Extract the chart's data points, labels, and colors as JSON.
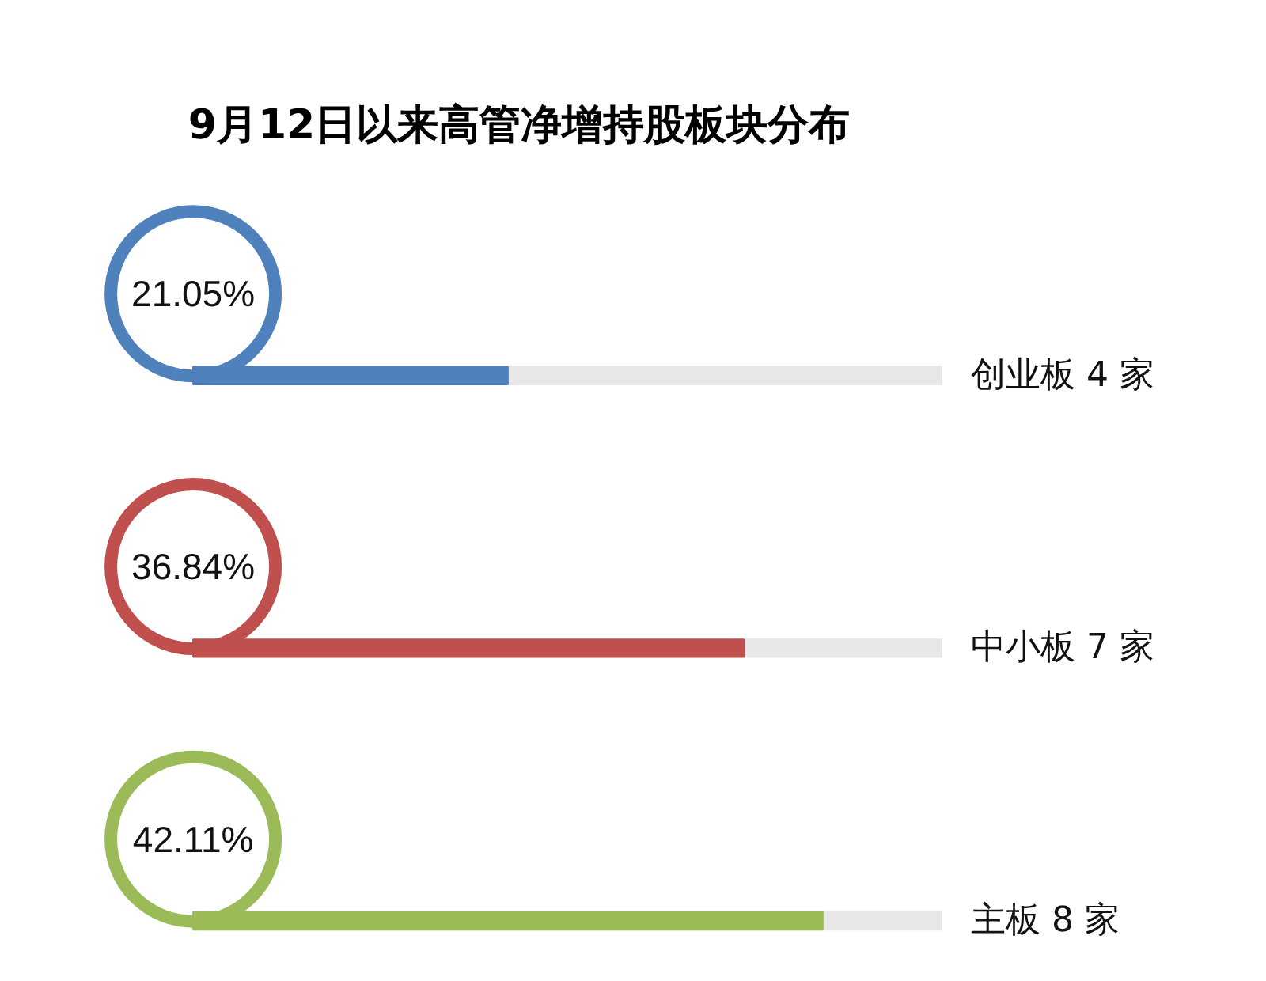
{
  "chart_data": {
    "type": "bar",
    "orientation": "horizontal",
    "title": "9月12日以来高管净增持股板块分布",
    "categories": [
      "创业板 4 家",
      "中小板 7 家",
      "主板 8 家"
    ],
    "values": [
      21.05,
      36.84,
      42.11
    ],
    "value_labels": [
      "21.05%",
      "36.84%",
      "42.11%"
    ],
    "colors": [
      "#4f81bd",
      "#c0504d",
      "#9bbb59"
    ],
    "tick_labels": "y",
    "grid": false
  }
}
